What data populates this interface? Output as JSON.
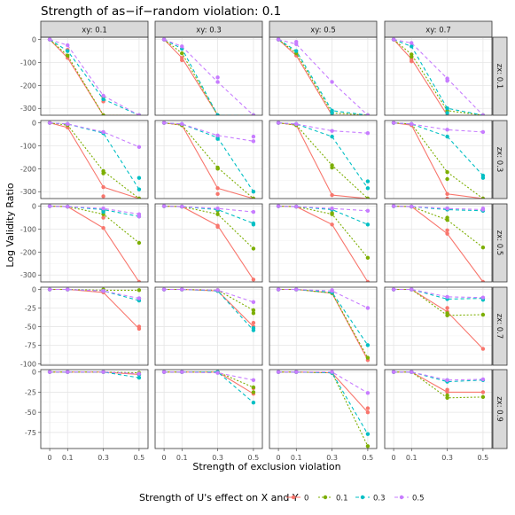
{
  "chart_data": {
    "type": "line",
    "title": "Strength of as−if−random violation: 0.1",
    "xlabel": "Strength of exclusion violation",
    "ylabel": "Log Validity Ratio",
    "x": [
      0,
      0.1,
      0.3,
      0.5
    ],
    "x_tick_labels": [
      "0",
      "0.1",
      "0.3",
      "0.5"
    ],
    "columns": [
      "xy: 0.1",
      "xy: 0.3",
      "xy: 0.5",
      "xy: 0.7"
    ],
    "rows": [
      {
        "label": "zx: 0.1",
        "ylim": [
          -330,
          10
        ],
        "ticks": [
          0,
          -100,
          -200,
          -300
        ]
      },
      {
        "label": "zx: 0.3",
        "ylim": [
          -330,
          10
        ],
        "ticks": [
          0,
          -100,
          -200,
          -300
        ]
      },
      {
        "label": "zx: 0.5",
        "ylim": [
          -330,
          10
        ],
        "ticks": [
          0,
          -100,
          -200,
          -300
        ]
      },
      {
        "label": "zx: 0.7",
        "ylim": [
          -102,
          3
        ],
        "ticks": [
          0,
          -25,
          -50,
          -75,
          -100
        ]
      },
      {
        "label": "zx: 0.9",
        "ylim": [
          -95,
          3
        ],
        "ticks": [
          0,
          -25,
          -50,
          -75
        ]
      }
    ],
    "legend": {
      "title": "Strength of U's effect on X and Y",
      "position": "bottom",
      "entries": [
        "0",
        "0.1",
        "0.3",
        "0.5"
      ],
      "colors": [
        "#f8766d",
        "#7cae00",
        "#00bfc4",
        "#c77cff"
      ],
      "line_styles": [
        "solid",
        "dotted",
        "dashed",
        "dashed"
      ]
    },
    "grid": true,
    "panels": [
      [
        {
          "series": [
            [
              0,
              -80,
              -330,
              -330
            ],
            [
              0,
              -70,
              -330,
              -330
            ],
            [
              0,
              -50,
              -260,
              -330
            ],
            [
              0,
              -25,
              -245,
              -330
            ]
          ],
          "extra": [
            [
              [
                0.1,
                -45
              ],
              [
                0.3,
                -270
              ]
            ],
            [
              [
                0.3,
                -250
              ]
            ],
            [],
            []
          ]
        },
        {
          "series": [
            [
              0,
              -80,
              -330,
              -330
            ],
            [
              0,
              -60,
              -330,
              -330
            ],
            [
              0,
              -40,
              -330,
              -330
            ],
            [
              0,
              -30,
              -185,
              -330
            ]
          ],
          "extra": [
            [
              [
                0.1,
                -90
              ]
            ],
            [],
            [],
            [
              [
                0.3,
                -165
              ]
            ]
          ]
        },
        {
          "series": [
            [
              0,
              -70,
              -330,
              -330
            ],
            [
              0,
              -60,
              -320,
              -330
            ],
            [
              0,
              -50,
              -310,
              -330
            ],
            [
              0,
              -20,
              -185,
              -330
            ]
          ],
          "extra": [
            [],
            [],
            [
              [
                0.3,
                -320
              ]
            ],
            [
              [
                0.1,
                -10
              ]
            ]
          ]
        },
        {
          "series": [
            [
              0,
              -85,
              -330,
              -330
            ],
            [
              0,
              -65,
              -310,
              -330
            ],
            [
              0,
              -30,
              -300,
              -330
            ],
            [
              0,
              -15,
              -170,
              -330
            ]
          ],
          "extra": [
            [
              [
                0.1,
                -95
              ]
            ],
            [
              [
                0.1,
                -75
              ]
            ],
            [
              [
                0.3,
                -320
              ]
            ],
            [
              [
                0.3,
                -180
              ]
            ]
          ]
        }
      ],
      [
        {
          "series": [
            [
              0,
              -20,
              -280,
              -330
            ],
            [
              0,
              -10,
              -210,
              -330
            ],
            [
              0,
              -5,
              -45,
              -290
            ],
            [
              0,
              -5,
              -40,
              -105
            ]
          ],
          "extra": [
            [
              [
                0.3,
                -320
              ]
            ],
            [
              [
                0.3,
                -220
              ]
            ],
            [
              [
                0.5,
                -240
              ]
            ],
            []
          ]
        },
        {
          "series": [
            [
              0,
              -10,
              -285,
              -330
            ],
            [
              0,
              -10,
              -195,
              -330
            ],
            [
              0,
              -5,
              -65,
              -300
            ],
            [
              0,
              -5,
              -55,
              -80
            ]
          ],
          "extra": [
            [
              [
                0.3,
                -310
              ]
            ],
            [
              [
                0.3,
                -200
              ]
            ],
            [
              [
                0.3,
                -70
              ]
            ],
            [
              [
                0.5,
                -60
              ]
            ]
          ]
        },
        {
          "series": [
            [
              0,
              -10,
              -315,
              -330
            ],
            [
              0,
              -10,
              -185,
              -330
            ],
            [
              0,
              -5,
              -60,
              -285
            ],
            [
              0,
              -5,
              -35,
              -45
            ]
          ],
          "extra": [
            [],
            [
              [
                0.3,
                -195
              ]
            ],
            [
              [
                0.5,
                -255
              ]
            ],
            []
          ]
        },
        {
          "series": [
            [
              0,
              -10,
              -310,
              -330
            ],
            [
              0,
              -5,
              -215,
              -330
            ],
            [
              0,
              -5,
              -60,
              -230
            ],
            [
              0,
              -5,
              -30,
              -40
            ]
          ],
          "extra": [
            [
              [
                0.3,
                -330
              ]
            ],
            [
              [
                0.3,
                -245
              ]
            ],
            [
              [
                0.5,
                -240
              ]
            ],
            []
          ]
        }
      ],
      [
        {
          "series": [
            [
              0,
              -2,
              -95,
              -330
            ],
            [
              0,
              -2,
              -35,
              -160
            ],
            [
              0,
              -2,
              -15,
              -45
            ],
            [
              0,
              -2,
              -10,
              -35
            ]
          ],
          "extra": [
            [
              [
                0.3,
                -50
              ]
            ],
            [
              [
                0.3,
                -20
              ]
            ],
            [
              [
                0.3,
                -25
              ]
            ],
            [
              [
                0.5,
                -45
              ]
            ]
          ]
        },
        {
          "series": [
            [
              0,
              -2,
              -85,
              -320
            ],
            [
              0,
              -2,
              -35,
              -185
            ],
            [
              0,
              -2,
              -15,
              -75
            ],
            [
              0,
              -2,
              -10,
              -25
            ]
          ],
          "extra": [
            [
              [
                0.3,
                -90
              ]
            ],
            [
              [
                0.3,
                -20
              ]
            ],
            [
              [
                0.5,
                -80
              ]
            ],
            []
          ]
        },
        {
          "series": [
            [
              0,
              -2,
              -80,
              -330
            ],
            [
              0,
              -2,
              -35,
              -225
            ],
            [
              0,
              -2,
              -15,
              -80
            ],
            [
              0,
              -2,
              -10,
              -20
            ]
          ],
          "extra": [
            [],
            [
              [
                0.3,
                -30
              ]
            ],
            [],
            []
          ]
        },
        {
          "series": [
            [
              0,
              -2,
              -120,
              -330
            ],
            [
              0,
              -2,
              -60,
              -180
            ],
            [
              0,
              -2,
              -15,
              -20
            ],
            [
              0,
              -2,
              -10,
              -15
            ]
          ],
          "extra": [
            [
              [
                0.3,
                -105
              ]
            ],
            [
              [
                0.3,
                -50
              ]
            ],
            [
              [
                0.3,
                -10
              ]
            ],
            [
              [
                0.5,
                -10
              ]
            ]
          ]
        }
      ],
      [
        {
          "series": [
            [
              0,
              0,
              -4,
              -53
            ],
            [
              0,
              0,
              -1,
              -1
            ],
            [
              0,
              0,
              -2,
              -15
            ],
            [
              0,
              0,
              -2,
              -12
            ]
          ],
          "extra": [
            [
              [
                0.5,
                -50
              ]
            ],
            [
              [
                0.3,
                0
              ]
            ],
            [
              [
                0.5,
                -12
              ]
            ],
            []
          ]
        },
        {
          "series": [
            [
              0,
              0,
              -2,
              -50
            ],
            [
              0,
              0,
              -1,
              -28
            ],
            [
              0,
              0,
              -2,
              -55
            ],
            [
              0,
              0,
              -1,
              -17
            ]
          ],
          "extra": [
            [
              [
                0.5,
                -45
              ]
            ],
            [
              [
                0.5,
                -32
              ]
            ],
            [
              [
                0.5,
                -52
              ]
            ],
            []
          ]
        },
        {
          "series": [
            [
              0,
              0,
              -5,
              -95
            ],
            [
              0,
              0,
              -5,
              -92
            ],
            [
              0,
              0,
              -4,
              -75
            ],
            [
              0,
              0,
              -2,
              -25
            ]
          ],
          "extra": [
            [],
            [],
            [],
            [
              [
                0.3,
                -1
              ]
            ]
          ]
        },
        {
          "series": [
            [
              0,
              0,
              -30,
              -80
            ],
            [
              0,
              0,
              -35,
              -34
            ],
            [
              0,
              0,
              -13,
              -12
            ],
            [
              0,
              0,
              -10,
              -11
            ]
          ],
          "extra": [
            [
              [
                0.3,
                -25
              ]
            ],
            [
              [
                0.3,
                -32
              ]
            ],
            [
              [
                0.5,
                -14
              ]
            ],
            []
          ]
        }
      ],
      [
        {
          "series": [
            [
              0,
              0,
              0,
              -3
            ],
            [
              0,
              0,
              0,
              -1
            ],
            [
              0,
              0,
              0,
              -7
            ],
            [
              0,
              0,
              0,
              -2
            ]
          ],
          "extra": [
            [],
            [],
            [
              [
                0.5,
                -3
              ]
            ],
            []
          ]
        },
        {
          "series": [
            [
              0,
              0,
              0,
              -27
            ],
            [
              0,
              0,
              0,
              -19
            ],
            [
              0,
              0,
              0,
              -38
            ],
            [
              0,
              0,
              -1,
              -10
            ]
          ],
          "extra": [
            [
              [
                0.5,
                -20
              ]
            ],
            [
              [
                0.5,
                -25
              ]
            ],
            [],
            []
          ]
        },
        {
          "series": [
            [
              0,
              0,
              -1,
              -50
            ],
            [
              0,
              0,
              -1,
              -92
            ],
            [
              0,
              0,
              -1,
              -77
            ],
            [
              0,
              0,
              0,
              -26
            ]
          ],
          "extra": [
            [
              [
                0.5,
                -45
              ]
            ],
            [],
            [],
            []
          ]
        },
        {
          "series": [
            [
              0,
              0,
              -25,
              -25
            ],
            [
              0,
              0,
              -32,
              -31
            ],
            [
              0,
              0,
              -12,
              -10
            ],
            [
              0,
              0,
              -10,
              -9
            ]
          ],
          "extra": [
            [
              [
                0.3,
                -22
              ]
            ],
            [
              [
                0.3,
                -29
              ]
            ],
            [
              [
                0.3,
                -10
              ]
            ],
            []
          ]
        }
      ]
    ]
  }
}
